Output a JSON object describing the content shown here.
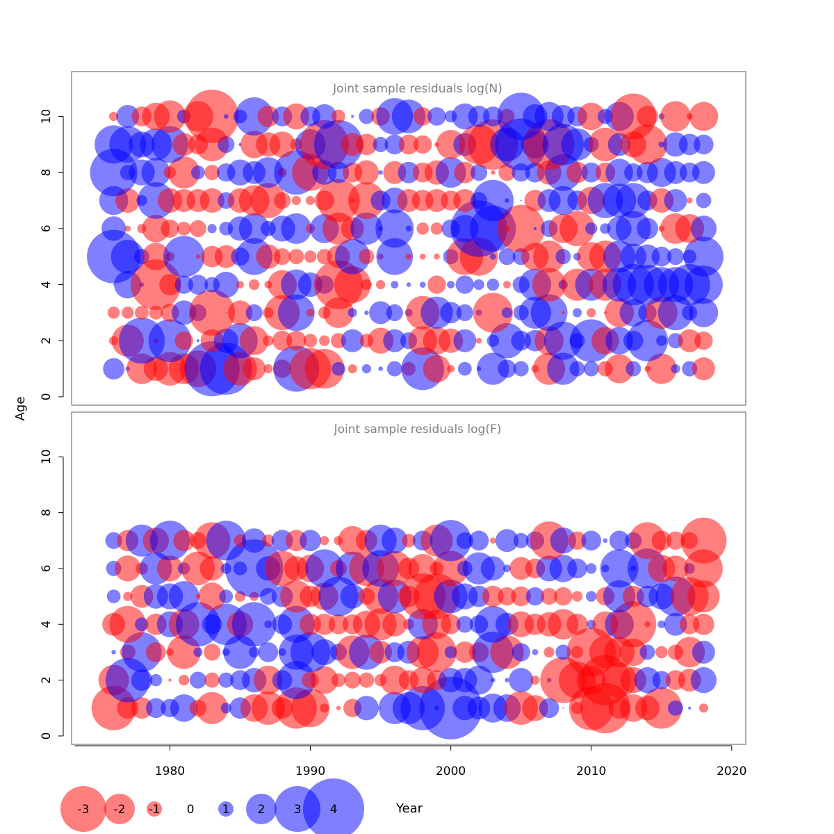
{
  "chart_data": {
    "type": "scatter",
    "subtype": "bubble",
    "xlabel": "Year",
    "ylabel": "Age",
    "xlim": [
      1973,
      2021
    ],
    "x_ticks": [
      1980,
      1990,
      2000,
      2010,
      2020
    ],
    "colors": {
      "positive": "#0000ff",
      "negative": "#ff0000",
      "opacity": 0.5,
      "frame": "#555555",
      "panel_title": "#808080"
    },
    "legend": {
      "placement": "bottom",
      "items": [
        {
          "label": "-3",
          "value": -3
        },
        {
          "label": "-2",
          "value": -2
        },
        {
          "label": "-1",
          "value": -1
        },
        {
          "label": "0",
          "value": 0
        },
        {
          "label": "1",
          "value": 1
        },
        {
          "label": "2",
          "value": 2
        },
        {
          "label": "3",
          "value": 3
        },
        {
          "label": "4",
          "value": 4
        }
      ]
    },
    "panels": [
      {
        "title": "Joint sample residuals log(N)",
        "ylim": [
          -0.3,
          11.6
        ],
        "y_ticks": [
          0,
          2,
          4,
          6,
          8,
          10
        ],
        "years": [
          1976,
          1977,
          1978,
          1979,
          1980,
          1981,
          1982,
          1983,
          1984,
          1985,
          1986,
          1987,
          1988,
          1989,
          1990,
          1991,
          1992,
          1993,
          1994,
          1995,
          1996,
          1997,
          1998,
          1999,
          2000,
          2001,
          2002,
          2003,
          2004,
          2005,
          2006,
          2007,
          2008,
          2009,
          2010,
          2011,
          2012,
          2013,
          2014,
          2015,
          2016,
          2017,
          2018
        ],
        "ages": [
          1,
          2,
          3,
          4,
          5,
          6,
          7,
          8,
          9,
          10
        ],
        "residuals": [
          [
            1.4,
            0.3,
            -2.0,
            -1.6,
            -2.2,
            -2.0,
            -2.4,
            3.6,
            3.4,
            -2.2,
            -1.5,
            -0.6,
            -1.2,
            3.0,
            -2.7,
            -2.6,
            0.9,
            -0.6,
            0.6,
            0.3,
            1.0,
            -0.9,
            2.8,
            -1.8,
            -0.5,
            0.9,
            0.3,
            2.1,
            1.2,
            1.0,
            -0.5,
            -2.1,
            2.1,
            1.0,
            1.0,
            -1.0,
            -1.9,
            1.0,
            -0.4,
            -2.0,
            0.6,
            1.0,
            -1.5
          ],
          [
            -0.6,
            -2.1,
            3.0,
            -0.3,
            2.8,
            -1.2,
            0.2,
            -1.5,
            1.6,
            2.3,
            -1.9,
            -0.7,
            -1.3,
            -1.3,
            -0.9,
            -0.7,
            -1.0,
            1.5,
            -0.9,
            -1.7,
            1.5,
            1.1,
            -1.9,
            -1.8,
            -1.6,
            1.5,
            -0.4,
            0.8,
            2.3,
            1.3,
            1.4,
            -1.9,
            2.5,
            1.0,
            2.8,
            -1.8,
            1.8,
            1.3,
            2.7,
            0.7,
            1.0,
            -1.5,
            -1.2
          ],
          [
            -0.8,
            -0.8,
            -0.9,
            -0.9,
            -1.2,
            1.6,
            1.1,
            -3.0,
            0.0,
            -1.6,
            1.1,
            -0.7,
            -2.3,
            2.4,
            -0.5,
            -0.8,
            -2.0,
            0.6,
            0.3,
            1.5,
            1.1,
            0.5,
            -2.2,
            2.1,
            1.4,
            1.1,
            0.4,
            -2.6,
            0.7,
            1.0,
            2.1,
            2.4,
            -0.2,
            0.6,
            -0.6,
            -0.2,
            -1.9,
            1.8,
            1.2,
            -2.1,
            2.3,
            1.0,
            1.9
          ],
          [
            0.1,
            1.8,
            0.3,
            -3.3,
            -1.4,
            1.2,
            1.3,
            1.0,
            1.7,
            -0.5,
            -0.7,
            -0.5,
            -1.9,
            2.0,
            1.6,
            1.2,
            -3.2,
            -2.4,
            -0.7,
            -0.6,
            0.5,
            0.3,
            0.4,
            -1.2,
            0.5,
            1.2,
            0.7,
            0.8,
            -0.5,
            1.1,
            2.1,
            -2.2,
            0.6,
            -2.1,
            2.1,
            -2.1,
            2.2,
            2.7,
            2.6,
            2.3,
            2.3,
            2.7,
            2.5
          ],
          [
            3.5,
            2.2,
            1.0,
            -1.8,
            -0.6,
            2.7,
            -0.3,
            -1.4,
            -1.5,
            1.2,
            2.4,
            -1.6,
            -1.1,
            -1.0,
            -0.8,
            -1.0,
            -1.5,
            2.3,
            -1.0,
            -0.4,
            2.4,
            -0.4,
            -0.4,
            -0.4,
            1.0,
            -2.4,
            -2.5,
            0.4,
            1.1,
            1.1,
            -1.8,
            -2.1,
            1.0,
            0.5,
            -1.9,
            -2.1,
            2.1,
            1.7,
            1.6,
            1.3,
            1.1,
            0.9,
            2.6
          ],
          [
            1.6,
            -0.4,
            -0.6,
            -1.8,
            -1.2,
            -0.9,
            -1.1,
            0.6,
            0.9,
            1.6,
            2.0,
            1.0,
            1.7,
            2.0,
            -0.6,
            1.9,
            -2.1,
            -1.5,
            2.1,
            0.3,
            2.5,
            0.4,
            -0.8,
            -0.8,
            1.2,
            1.8,
            3.7,
            3.0,
            -0.4,
            -3.1,
            0.2,
            1.1,
            -1.9,
            -2.3,
            0.8,
            0.7,
            1.6,
            2.3,
            1.4,
            -0.4,
            -2.0,
            -1.9,
            1.7
          ],
          [
            1.9,
            -1.6,
            0.7,
            2.4,
            -1.6,
            -1.5,
            -1.5,
            -1.6,
            1.1,
            -1.6,
            -2.0,
            -2.3,
            -1.1,
            -0.6,
            -0.6,
            -1.3,
            -2.8,
            -0.3,
            -2.4,
            1.3,
            1.7,
            -1.5,
            -1.4,
            -1.5,
            -1.3,
            -1.5,
            1.1,
            2.7,
            0.3,
            0.1,
            -1.4,
            1.5,
            1.9,
            1.3,
            -1.8,
            2.3,
            2.2,
            2.3,
            1.3,
            -1.6,
            1.5,
            -0.4,
            1.0
          ],
          [
            3.1,
            1.0,
            1.7,
            1.9,
            -0.8,
            -2.1,
            0.9,
            -1.0,
            1.2,
            1.7,
            1.5,
            2.0,
            -0.6,
            2.9,
            -2.4,
            1.6,
            1.4,
            -1.3,
            -1.6,
            0.3,
            -1.5,
            1.4,
            -1.3,
            -1.6,
            2.0,
            -1.4,
            1.1,
            -0.3,
            -1.1,
            1.2,
            1.3,
            -1.6,
            2.4,
            -1.4,
            1.3,
            -1.3,
            1.8,
            1.2,
            1.4,
            1.9,
            1.5,
            1.3,
            1.5
          ],
          [
            2.5,
            2.4,
            1.7,
            2.1,
            2.4,
            -1.5,
            -1.3,
            -2.2,
            1.1,
            0.2,
            -1.8,
            -1.6,
            -1.7,
            -0.8,
            2.0,
            -3.2,
            3.2,
            -1.5,
            -1.4,
            1.0,
            1.3,
            -1.3,
            -1.2,
            -0.3,
            -1.9,
            1.5,
            -2.6,
            -3.3,
            2.2,
            3.4,
            1.8,
            -3.3,
            2.7,
            2.1,
            1.0,
            -2.2,
            1.5,
            -1.7,
            -2.6,
            0.4,
            1.6,
            1.4,
            1.3
          ],
          [
            -0.6,
            1.5,
            -1.3,
            -1.8,
            -2.1,
            0.9,
            -2.0,
            -3.5,
            0.3,
            0.9,
            2.5,
            -1.4,
            1.3,
            -1.7,
            1.3,
            1.6,
            -0.9,
            0.2,
            1.0,
            -1.2,
            2.4,
            2.2,
            -1.2,
            1.2,
            0.8,
            1.7,
            1.4,
            1.3,
            -1.0,
            3.1,
            1.6,
            1.9,
            1.5,
            1.3,
            -1.8,
            1.0,
            1.9,
            -3.0,
            -1.4,
            0.4,
            -2.0,
            -0.4,
            -1.9
          ]
        ]
      },
      {
        "title": "Joint sample residuals log(F)",
        "ylim": [
          -0.3,
          11.6
        ],
        "y_ticks": [
          0,
          2,
          4,
          6,
          8,
          10
        ],
        "years": [
          1976,
          1977,
          1978,
          1979,
          1980,
          1981,
          1982,
          1983,
          1984,
          1985,
          1986,
          1987,
          1988,
          1989,
          1990,
          1991,
          1992,
          1993,
          1994,
          1995,
          1996,
          1997,
          1998,
          1999,
          2000,
          2001,
          2002,
          2003,
          2004,
          2005,
          2006,
          2007,
          2008,
          2009,
          2010,
          2011,
          2012,
          2013,
          2014,
          2015,
          2016,
          2017,
          2018
        ],
        "ages": [
          1,
          2,
          3,
          4,
          5,
          6,
          7
        ],
        "residuals": [
          [
            -2.9,
            -1.4,
            -1.4,
            1.3,
            1.2,
            1.8,
            -1.1,
            -2.1,
            0.7,
            1.4,
            -1.8,
            -2.2,
            -1.4,
            -2.7,
            -2.5,
            -0.6,
            -0.3,
            -1.2,
            1.6,
            0.1,
            2.1,
            2.1,
            2.9,
            0.3,
            4.1,
            1.6,
            1.5,
            1.9,
            1.8,
            -2.2,
            -1.7,
            1.3,
            0.1,
            -0.8,
            -2.9,
            -3.3,
            -1.4,
            -1.8,
            -1.6,
            -2.7,
            1.0,
            0.2,
            -0.6
          ],
          [
            -2.0,
            2.9,
            1.4,
            0.8,
            -0.2,
            -0.7,
            1.1,
            -1.0,
            1.0,
            1.3,
            1.6,
            -1.9,
            1.3,
            2.5,
            -1.1,
            -1.8,
            -0.9,
            -1.1,
            -1.0,
            -0.8,
            -1.9,
            -1.3,
            -1.7,
            -1.3,
            1.6,
            1.6,
            1.9,
            0.3,
            0.3,
            1.6,
            -0.6,
            0.3,
            -3.0,
            -2.4,
            -1.9,
            -3.3,
            -2.3,
            -1.7,
            1.7,
            1.2,
            -1.3,
            -1.5,
            1.7
          ],
          [
            0.3,
            -1.0,
            2.6,
            -1.3,
            -0.5,
            -2.2,
            0.6,
            -1.1,
            0.5,
            2.2,
            0.7,
            1.3,
            0.5,
            2.3,
            2.6,
            1.7,
            1.1,
            -2.2,
            2.3,
            -1.5,
            1.3,
            1.5,
            -2.1,
            -2.6,
            0.8,
            -1.4,
            -1.3,
            2.7,
            -2.2,
            1.2,
            0.4,
            -0.7,
            1.0,
            -0.8,
            -3.2,
            -2.1,
            -2.0,
            -1.8,
            1.0,
            -0.8,
            -1.0,
            -2.0,
            1.5
          ],
          [
            -1.5,
            -2.4,
            0.9,
            -1.4,
            1.7,
            -2.0,
            2.9,
            1.3,
            2.7,
            -1.7,
            2.9,
            0.5,
            1.3,
            2.4,
            -1.4,
            -1.4,
            -1.3,
            -1.3,
            -1.8,
            -2.1,
            -1.6,
            -0.7,
            2.0,
            -1.9,
            -1.3,
            1.1,
            1.2,
            2.4,
            1.5,
            -1.7,
            -1.4,
            -1.6,
            -2.0,
            -1.4,
            0.6,
            -1.7,
            1.9,
            -3.0,
            -0.4,
            0.5,
            1.5,
            -1.3,
            -1.4
          ],
          [
            0.9,
            -0.6,
            -1.5,
            1.6,
            1.7,
            2.0,
            -0.3,
            -1.8,
            0.9,
            -0.7,
            -0.6,
            1.1,
            1.4,
            -2.1,
            -1.4,
            -1.8,
            2.6,
            1.6,
            -1.1,
            -2.3,
            2.2,
            -1.4,
            -3.0,
            -3.0,
            2.2,
            1.7,
            1.4,
            -1.4,
            -1.2,
            -1.3,
            1.2,
            -1.1,
            -1.2,
            -0.7,
            0.7,
            -1.2,
            2.1,
            -1.4,
            1.4,
            1.7,
            2.6,
            -2.5,
            -2.1
          ],
          [
            1.0,
            -1.7,
            -0.8,
            2.1,
            -1.7,
            0.8,
            -2.2,
            -1.6,
            0.7,
            0.9,
            3.8,
            1.6,
            -2.3,
            -1.6,
            -1.8,
            2.5,
            -1.1,
            2.2,
            -2.3,
            2.4,
            -2.3,
            -1.4,
            -1.9,
            -0.9,
            -2.3,
            1.0,
            2.1,
            1.6,
            0.5,
            -1.5,
            -1.3,
            1.7,
            1.8,
            1.3,
            0.7,
            0.5,
            2.5,
            0.4,
            2.6,
            -1.8,
            -1.7,
            0.7,
            -2.5
          ],
          [
            1.1,
            -1.4,
            2.1,
            -1.7,
            2.6,
            -1.4,
            -1.1,
            -2.4,
            2.6,
            -0.8,
            1.6,
            -0.8,
            1.4,
            -1.4,
            1.4,
            -0.6,
            -0.6,
            -1.9,
            -1.4,
            2.1,
            1.7,
            -0.9,
            1.3,
            -2.1,
            2.7,
            1.1,
            1.3,
            -0.4,
            1.5,
            1.0,
            1.2,
            -2.5,
            1.7,
            -1.2,
            1.3,
            0.3,
            1.3,
            1.1,
            -2.4,
            -1.3,
            -1.2,
            -1.1,
            -3.0
          ]
        ]
      }
    ]
  }
}
